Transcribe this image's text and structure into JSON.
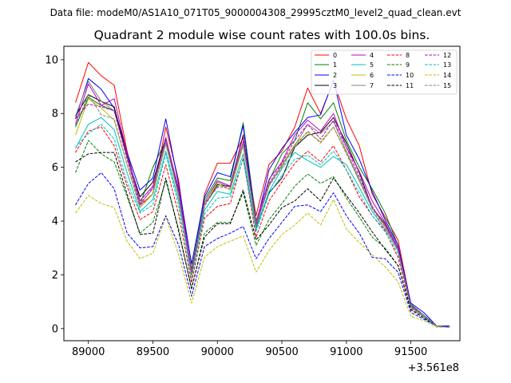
{
  "subtitle": "Data file: modeM0/AS1A10_071T05_9000004308_29995cztM0_level2_quad_clean.evt",
  "chart_data": {
    "type": "line",
    "title": "Quadrant 2 module wise count rates with 100.0s bins.",
    "xlabel": "",
    "ylabel": "",
    "x_offset_label": "+3.561e8",
    "x_offset": 356100000,
    "xlim": [
      88810,
      91880
    ],
    "ylim": [
      -0.45,
      10.5
    ],
    "x_ticks": [
      89000,
      89500,
      90000,
      90500,
      91000,
      91500
    ],
    "x_tick_labels": [
      "89000",
      "89500",
      "90000",
      "90500",
      "91000",
      "91500"
    ],
    "y_ticks": [
      0,
      2,
      4,
      6,
      8,
      10
    ],
    "y_tick_labels": [
      "0",
      "2",
      "4",
      "6",
      "8",
      "10"
    ],
    "legend_position": "top-right",
    "grid": false,
    "x": [
      88900,
      89000,
      89100,
      89200,
      89300,
      89400,
      89500,
      89600,
      89700,
      89800,
      89900,
      90000,
      90100,
      90200,
      90300,
      90400,
      90500,
      90600,
      90700,
      90800,
      90900,
      91000,
      91100,
      91200,
      91300,
      91400,
      91500,
      91600,
      91700,
      91800
    ],
    "series": [
      {
        "name": "0",
        "color": "#ff0000",
        "dash": "solid",
        "values": [
          8.4,
          9.9,
          9.4,
          9.05,
          6.6,
          4.6,
          5.0,
          7.5,
          5.5,
          2.0,
          5.0,
          6.15,
          6.15,
          7.1,
          4.2,
          6.1,
          6.6,
          7.5,
          8.95,
          8.0,
          9.2,
          7.8,
          6.8,
          5.0,
          4.15,
          3.3,
          0.9,
          0.5,
          0.1,
          0.1
        ]
      },
      {
        "name": "1",
        "color": "#008000",
        "dash": "solid",
        "values": [
          7.5,
          8.6,
          8.3,
          8.1,
          6.55,
          4.6,
          6.0,
          7.0,
          5.0,
          2.2,
          4.8,
          5.6,
          5.5,
          7.65,
          4.0,
          5.5,
          6.5,
          7.0,
          8.4,
          7.8,
          8.4,
          7.0,
          6.0,
          5.2,
          4.3,
          3.1,
          0.9,
          0.5,
          0.1,
          0.1
        ]
      },
      {
        "name": "2",
        "color": "#0000ff",
        "dash": "solid",
        "values": [
          7.8,
          9.3,
          8.9,
          8.2,
          6.55,
          5.15,
          5.6,
          7.8,
          5.35,
          2.4,
          4.9,
          5.8,
          5.65,
          7.55,
          3.85,
          5.9,
          6.7,
          7.3,
          7.85,
          7.95,
          9.25,
          7.2,
          6.3,
          5.1,
          4.05,
          3.1,
          0.95,
          0.6,
          0.1,
          0.1
        ]
      },
      {
        "name": "3",
        "color": "#000000",
        "dash": "solid",
        "values": [
          7.9,
          8.7,
          8.45,
          8.25,
          6.4,
          4.9,
          5.45,
          7.1,
          5.1,
          2.0,
          4.6,
          5.35,
          5.3,
          7.2,
          3.75,
          5.05,
          5.6,
          6.75,
          7.2,
          7.3,
          7.85,
          6.9,
          5.8,
          4.5,
          3.9,
          2.95,
          0.85,
          0.5,
          0.1,
          0.05
        ]
      },
      {
        "name": "4",
        "color": "#bf00bf",
        "dash": "solid",
        "values": [
          7.6,
          9.1,
          8.3,
          8.55,
          6.5,
          4.75,
          5.3,
          7.05,
          5.2,
          2.1,
          4.7,
          5.5,
          5.3,
          6.95,
          3.95,
          5.55,
          6.2,
          7.2,
          7.75,
          7.35,
          8.0,
          6.75,
          5.85,
          4.75,
          3.95,
          3.0,
          0.85,
          0.5,
          0.1,
          0.05
        ]
      },
      {
        "name": "5",
        "color": "#00bfbf",
        "dash": "solid",
        "values": [
          6.7,
          7.6,
          7.85,
          7.4,
          5.8,
          4.35,
          4.8,
          6.6,
          4.75,
          2.0,
          4.4,
          5.1,
          5.0,
          6.5,
          3.7,
          5.1,
          5.95,
          6.55,
          6.25,
          6.0,
          6.4,
          6.1,
          5.25,
          4.35,
          3.7,
          2.9,
          0.8,
          0.45,
          0.1,
          0.05
        ]
      },
      {
        "name": "6",
        "color": "#bfbf00",
        "dash": "solid",
        "values": [
          7.2,
          8.55,
          8.2,
          7.75,
          6.1,
          4.5,
          5.0,
          6.9,
          4.9,
          2.0,
          4.6,
          5.4,
          5.15,
          6.8,
          3.85,
          5.3,
          6.1,
          6.85,
          7.3,
          6.95,
          7.5,
          6.55,
          5.5,
          4.5,
          3.85,
          2.95,
          0.85,
          0.5,
          0.1,
          0.05
        ]
      },
      {
        "name": "7",
        "color": "#808080",
        "dash": "solid",
        "values": [
          7.9,
          9.2,
          8.45,
          8.1,
          6.35,
          4.65,
          5.2,
          6.95,
          5.0,
          2.05,
          4.7,
          5.45,
          5.25,
          6.9,
          3.9,
          5.35,
          6.05,
          6.8,
          7.6,
          7.25,
          7.7,
          6.6,
          5.55,
          4.5,
          3.8,
          2.95,
          0.85,
          0.45,
          0.1,
          0.05
        ]
      },
      {
        "name": "8",
        "color": "#ff0000",
        "dash": "dashed",
        "values": [
          6.55,
          7.35,
          7.5,
          6.8,
          5.3,
          4.05,
          4.35,
          6.1,
          4.25,
          1.7,
          4.1,
          4.55,
          4.65,
          6.35,
          3.4,
          4.75,
          5.45,
          6.15,
          6.6,
          6.2,
          6.8,
          5.9,
          4.9,
          4.2,
          3.65,
          2.65,
          0.75,
          0.45,
          0.1,
          0.05
        ]
      },
      {
        "name": "9",
        "color": "#008000",
        "dash": "dashed",
        "values": [
          5.8,
          7.0,
          6.5,
          6.2,
          4.9,
          3.55,
          3.95,
          5.5,
          3.7,
          1.45,
          3.55,
          3.95,
          3.95,
          5.05,
          3.1,
          4.05,
          4.65,
          5.3,
          5.75,
          5.4,
          5.65,
          4.85,
          4.15,
          3.4,
          3.0,
          2.35,
          0.7,
          0.4,
          0.1,
          0.05
        ]
      },
      {
        "name": "10",
        "color": "#0000ff",
        "dash": "dashed",
        "values": [
          4.6,
          5.4,
          5.8,
          5.2,
          3.55,
          3.0,
          3.05,
          4.2,
          3.1,
          1.2,
          3.05,
          3.35,
          3.55,
          3.8,
          2.6,
          3.35,
          3.95,
          4.55,
          4.6,
          4.35,
          5.05,
          4.2,
          3.55,
          2.65,
          2.6,
          2.1,
          0.6,
          0.35,
          0.1,
          0.05
        ]
      },
      {
        "name": "11",
        "color": "#000000",
        "dash": "dashed",
        "values": [
          6.2,
          6.5,
          6.55,
          6.55,
          5.0,
          3.5,
          3.55,
          5.6,
          3.6,
          1.5,
          3.4,
          3.9,
          3.9,
          5.15,
          3.3,
          3.85,
          4.5,
          4.75,
          5.2,
          4.75,
          5.6,
          4.95,
          4.3,
          3.6,
          2.95,
          2.35,
          0.7,
          0.4,
          0.1,
          0.05
        ]
      },
      {
        "name": "12",
        "color": "#bf00bf",
        "dash": "dashed",
        "values": [
          7.8,
          8.35,
          8.25,
          8.1,
          6.3,
          4.6,
          5.25,
          7.1,
          5.1,
          2.0,
          4.65,
          5.25,
          5.3,
          7.15,
          3.85,
          5.4,
          6.15,
          7.0,
          7.6,
          7.05,
          7.75,
          6.75,
          5.65,
          4.55,
          3.8,
          3.0,
          0.85,
          0.5,
          0.1,
          0.05
        ]
      },
      {
        "name": "13",
        "color": "#00bfbf",
        "dash": "dashed",
        "values": [
          6.75,
          7.25,
          7.6,
          7.05,
          5.45,
          4.3,
          4.6,
          6.5,
          4.55,
          1.85,
          4.25,
          4.85,
          4.9,
          6.3,
          3.6,
          5.0,
          5.7,
          6.3,
          6.45,
          6.1,
          6.6,
          5.9,
          5.05,
          4.2,
          3.6,
          2.8,
          0.8,
          0.45,
          0.1,
          0.05
        ]
      },
      {
        "name": "14",
        "color": "#bfbf00",
        "dash": "dashed",
        "values": [
          4.3,
          4.95,
          4.65,
          4.5,
          3.25,
          2.6,
          2.8,
          4.15,
          2.75,
          0.95,
          2.65,
          3.05,
          3.25,
          3.45,
          2.1,
          2.9,
          3.5,
          3.85,
          4.3,
          3.85,
          4.8,
          3.7,
          3.2,
          2.75,
          2.3,
          1.75,
          0.45,
          0.3,
          0.05,
          0.05
        ]
      },
      {
        "name": "15",
        "color": "#808080",
        "dash": "dashed",
        "values": [
          7.55,
          8.7,
          7.95,
          7.8,
          6.1,
          4.5,
          5.05,
          6.85,
          4.95,
          1.95,
          4.55,
          5.3,
          5.2,
          6.85,
          3.8,
          5.3,
          6.0,
          6.75,
          7.35,
          6.9,
          7.5,
          6.5,
          5.5,
          4.45,
          3.7,
          2.9,
          0.8,
          0.5,
          0.1,
          0.05
        ]
      }
    ]
  }
}
